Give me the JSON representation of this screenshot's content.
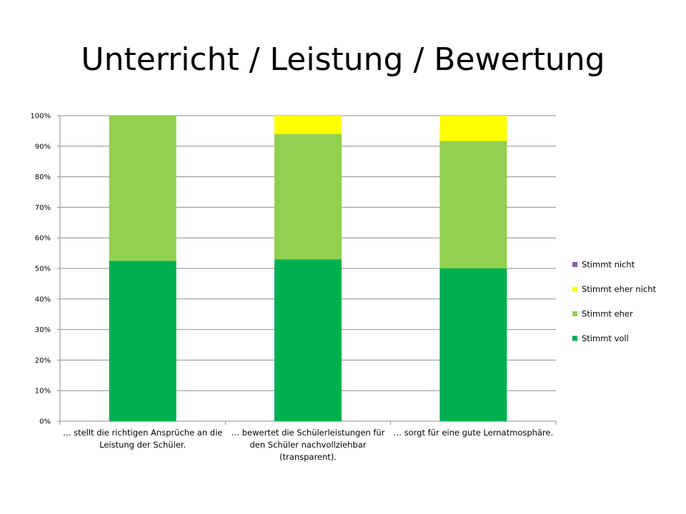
{
  "slide": {
    "title": "Unterricht / Leistung / Bewertung"
  },
  "chart_data": {
    "type": "bar",
    "stacked": true,
    "percent": true,
    "categories": [
      [
        "… stellt die richtigen Ansprüche an die",
        "Leistung der Schüler."
      ],
      [
        "… bewertet die Schülerleistungen für",
        "den Schüler nachvollziehbar",
        "(transparent)."
      ],
      [
        "… sorgt für eine gute Lernatmosphäre."
      ]
    ],
    "series": [
      {
        "name": "Stimmt voll",
        "color": "#00b050",
        "values": [
          52.5,
          53,
          50
        ]
      },
      {
        "name": "Stimmt eher",
        "color": "#92d050",
        "values": [
          47.5,
          41,
          41.7
        ]
      },
      {
        "name": "Stimmt eher nicht",
        "color": "#ffff00",
        "values": [
          0,
          6,
          8.3
        ]
      },
      {
        "name": "Stimmt nicht",
        "color": "#8064a2",
        "values": [
          0,
          0,
          0
        ]
      }
    ],
    "ylim": [
      0,
      100
    ],
    "yticks": [
      "0%",
      "10%",
      "20%",
      "30%",
      "40%",
      "50%",
      "60%",
      "70%",
      "80%",
      "90%",
      "100%"
    ],
    "grid": true,
    "legend_position": "right",
    "legend_order": [
      "Stimmt nicht",
      "Stimmt eher nicht",
      "Stimmt eher",
      "Stimmt voll"
    ],
    "xlabel": "",
    "ylabel": ""
  }
}
